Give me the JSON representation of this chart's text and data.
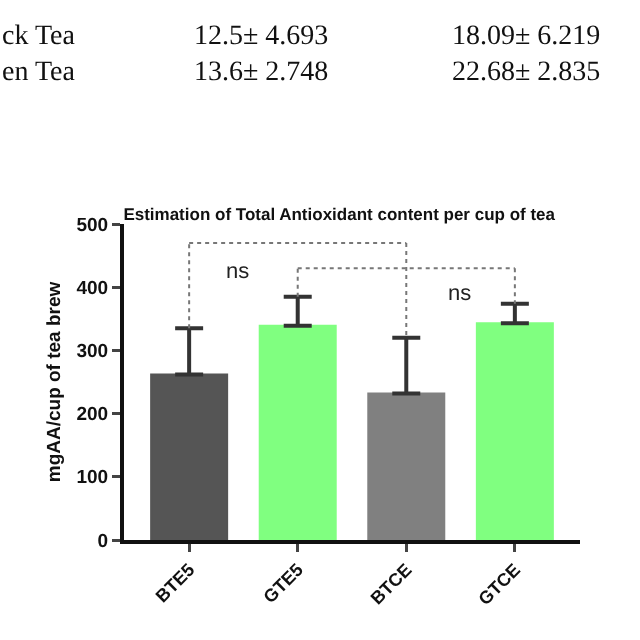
{
  "chart_data": {
    "type": "bar",
    "title": "Estimation of Total Antioxidant content per cup of tea",
    "ylabel": "mgAA/cup of tea brew",
    "categories": [
      "BTE5",
      "GTE5",
      "BTCE",
      "GTCE"
    ],
    "values": [
      262,
      339,
      232,
      343
    ],
    "colors": [
      "#555555",
      "#80ff80",
      "#808080",
      "#80ff80"
    ],
    "errors": [
      [
        262,
        335
      ],
      [
        339,
        385
      ],
      [
        232,
        320
      ],
      [
        343,
        374
      ]
    ],
    "ylim": [
      0,
      500
    ],
    "yticks": [
      0,
      100,
      200,
      300,
      400,
      500
    ],
    "grid": false,
    "annotations": [
      "ck Tea",
      "12.5± 4.693",
      "18.09± 6.219",
      "en Tea",
      "13.6± 2.748",
      "22.68± 2.835",
      "ns",
      "ns"
    ]
  }
}
